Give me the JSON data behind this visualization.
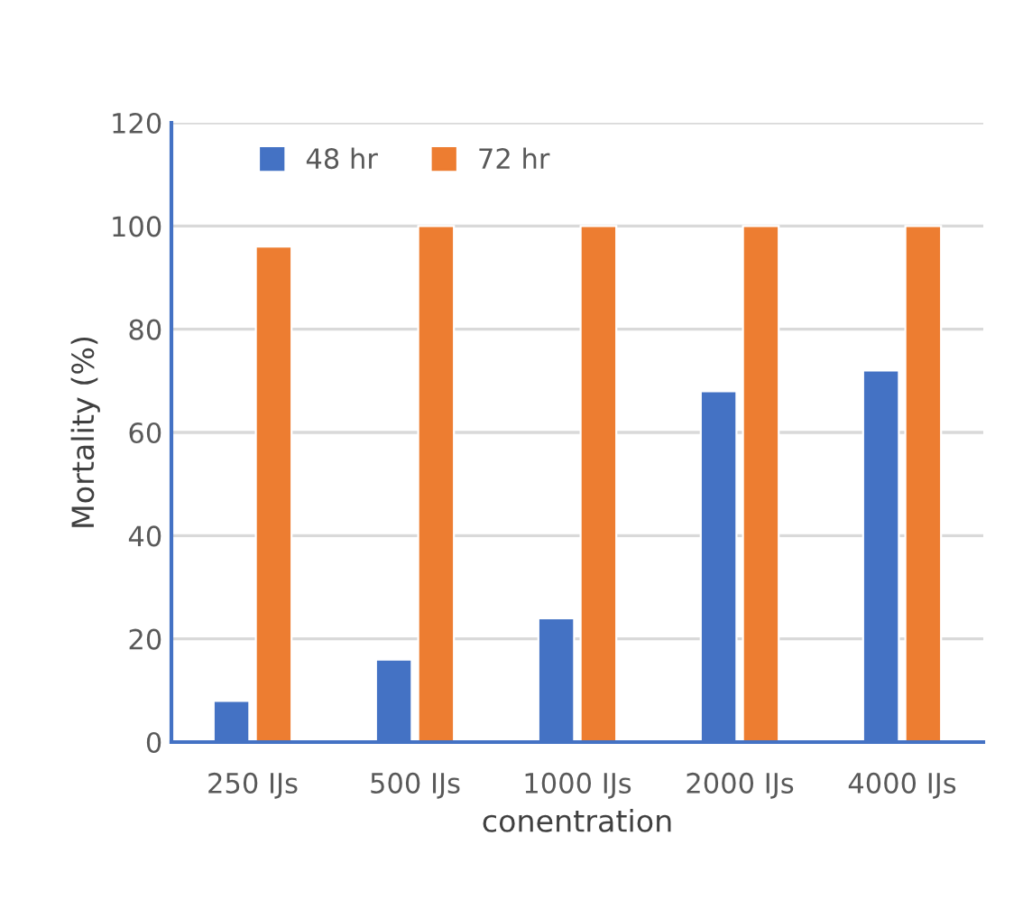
{
  "chart_data": {
    "type": "bar",
    "xlabel": "conentration",
    "ylabel": "Mortality (%)",
    "categories": [
      "250 IJs",
      "500 IJs",
      "1000 IJs",
      "2000 IJs",
      "4000 IJs"
    ],
    "series": [
      {
        "name": "48 hr",
        "color": "#4472c4",
        "values": [
          8,
          16,
          24,
          68,
          72
        ]
      },
      {
        "name": "72 hr",
        "color": "#ed7d31",
        "values": [
          96,
          100,
          100,
          100,
          100
        ]
      }
    ],
    "ylim": [
      0,
      120
    ],
    "yticks": [
      0,
      20,
      40,
      60,
      80,
      100,
      120
    ],
    "grid": "y",
    "legend": "top left"
  }
}
